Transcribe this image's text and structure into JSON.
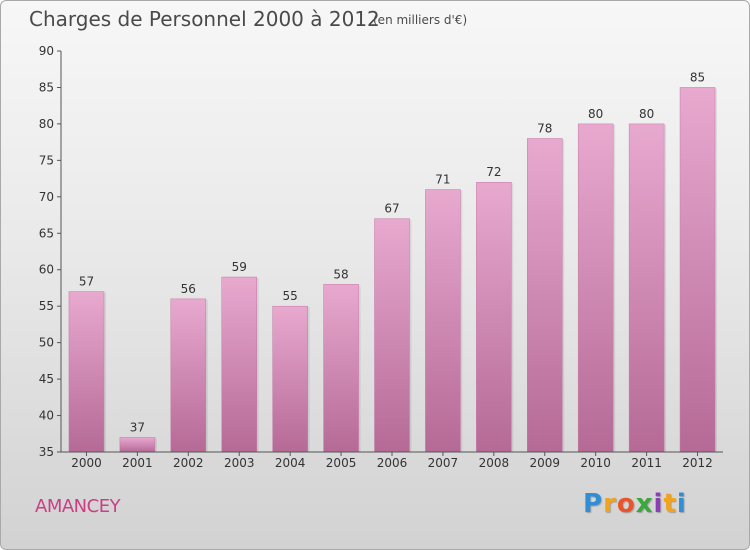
{
  "commune": "AMANCEY",
  "brand": {
    "letters": [
      "P",
      "r",
      "o",
      "x",
      "i",
      "t",
      "i"
    ],
    "colors": [
      "#2f8ed6",
      "#f2a21b",
      "#e8542b",
      "#3aa83a",
      "#8a3fb5",
      "#f2a21b",
      "#2f8ed6"
    ]
  },
  "colors": {
    "bar": "#d98bb8",
    "bar_light": "#e8a9cf",
    "bar_dark": "#b56a96",
    "commune": "#cc3f86"
  },
  "chart_data": {
    "type": "bar",
    "title": "Charges de Personnel 2000 à 2012",
    "subtitle": "(en milliers d'€)",
    "xlabel": "",
    "ylabel": "",
    "categories": [
      "2000",
      "2001",
      "2002",
      "2003",
      "2004",
      "2005",
      "2006",
      "2007",
      "2008",
      "2009",
      "2010",
      "2011",
      "2012"
    ],
    "values": [
      57,
      37,
      56,
      59,
      55,
      58,
      67,
      71,
      72,
      78,
      80,
      80,
      85
    ],
    "ylim": [
      35,
      90
    ],
    "yticks": [
      35,
      40,
      45,
      50,
      55,
      60,
      65,
      70,
      75,
      80,
      85,
      90
    ],
    "grid": false,
    "legend": "none",
    "data_labels": true
  }
}
